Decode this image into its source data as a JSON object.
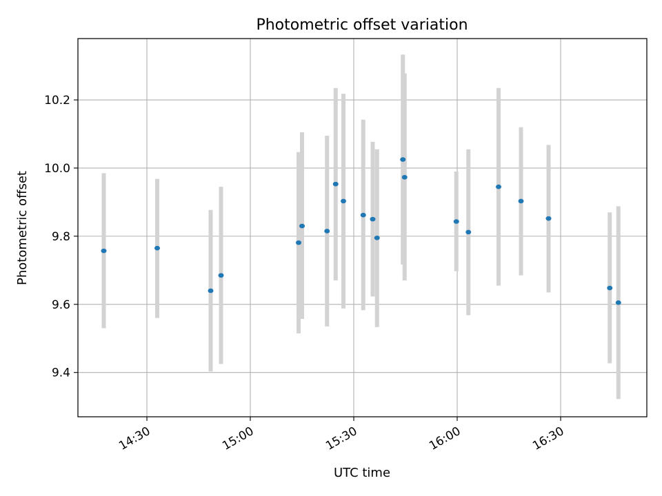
{
  "chart_data": {
    "type": "scatter",
    "title": "Photometric offset variation",
    "xlabel": "UTC time",
    "ylabel": "Photometric offset",
    "xlim": [
      "14:10",
      "16:55"
    ],
    "ylim": [
      9.27,
      10.38
    ],
    "grid": true,
    "x_ticks": [
      "14:30",
      "15:00",
      "15:30",
      "16:00",
      "16:30"
    ],
    "y_ticks": [
      9.4,
      9.6,
      9.8,
      10.0,
      10.2
    ],
    "y_tick_labels": [
      "9.4",
      "9.6",
      "9.8",
      "10.0",
      "10.2"
    ],
    "colors": {
      "point": "#1f77b4",
      "errorbar": "#d3d3d3",
      "grid": "#b0b0b0"
    },
    "points": [
      {
        "x": "14:17:30",
        "y": 9.757,
        "ylow": 9.53,
        "yhigh": 9.985
      },
      {
        "x": "14:33:00",
        "y": 9.765,
        "ylow": 9.56,
        "yhigh": 9.968
      },
      {
        "x": "14:48:30",
        "y": 9.64,
        "ylow": 9.403,
        "yhigh": 9.877
      },
      {
        "x": "14:51:30",
        "y": 9.685,
        "ylow": 9.425,
        "yhigh": 9.945
      },
      {
        "x": "15:14:00",
        "y": 9.781,
        "ylow": 9.515,
        "yhigh": 10.047
      },
      {
        "x": "15:15:00",
        "y": 9.83,
        "ylow": 9.557,
        "yhigh": 10.105
      },
      {
        "x": "15:22:15",
        "y": 9.815,
        "ylow": 9.535,
        "yhigh": 10.095
      },
      {
        "x": "15:24:45",
        "y": 9.953,
        "ylow": 9.67,
        "yhigh": 10.235
      },
      {
        "x": "15:27:00",
        "y": 9.903,
        "ylow": 9.588,
        "yhigh": 10.218
      },
      {
        "x": "15:32:45",
        "y": 9.862,
        "ylow": 9.583,
        "yhigh": 10.142
      },
      {
        "x": "15:35:30",
        "y": 9.85,
        "ylow": 9.623,
        "yhigh": 10.077
      },
      {
        "x": "15:36:45",
        "y": 9.795,
        "ylow": 9.533,
        "yhigh": 10.055
      },
      {
        "x": "15:44:15",
        "y": 10.025,
        "ylow": 9.717,
        "yhigh": 10.333
      },
      {
        "x": "15:44:45",
        "y": 9.973,
        "ylow": 9.67,
        "yhigh": 10.278
      },
      {
        "x": "15:59:45",
        "y": 9.843,
        "ylow": 9.697,
        "yhigh": 9.99
      },
      {
        "x": "16:03:15",
        "y": 9.812,
        "ylow": 9.568,
        "yhigh": 10.055
      },
      {
        "x": "16:12:00",
        "y": 9.945,
        "ylow": 9.655,
        "yhigh": 10.235
      },
      {
        "x": "16:18:30",
        "y": 9.903,
        "ylow": 9.685,
        "yhigh": 10.12
      },
      {
        "x": "16:26:30",
        "y": 9.852,
        "ylow": 9.635,
        "yhigh": 10.068
      },
      {
        "x": "16:44:15",
        "y": 9.648,
        "ylow": 9.427,
        "yhigh": 9.87
      },
      {
        "x": "16:46:45",
        "y": 9.605,
        "ylow": 9.322,
        "yhigh": 9.888
      }
    ]
  }
}
